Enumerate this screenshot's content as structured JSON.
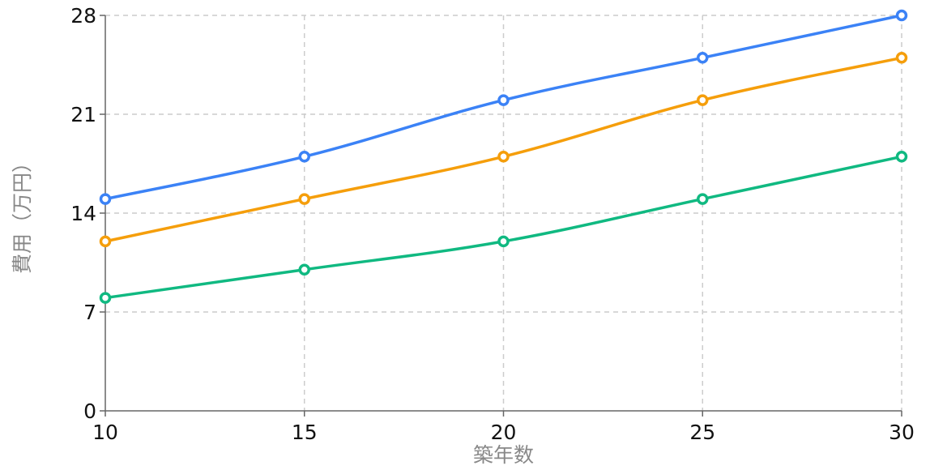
{
  "chart_data": {
    "type": "line",
    "title": "",
    "xlabel": "築年数",
    "ylabel": "費用（万円）",
    "x": [
      10,
      15,
      20,
      25,
      30
    ],
    "xlim": [
      10,
      30
    ],
    "ylim": [
      0,
      28
    ],
    "y_ticks": [
      0,
      7,
      14,
      21,
      28
    ],
    "x_ticks": [
      10,
      15,
      20,
      25,
      30
    ],
    "grid": true,
    "legend": "none",
    "series": [
      {
        "color": "#3b82f6",
        "values": [
          15,
          18,
          22,
          25,
          28
        ]
      },
      {
        "color": "#f59e0b",
        "values": [
          12,
          15,
          18,
          22,
          25
        ]
      },
      {
        "color": "#10b981",
        "values": [
          8,
          10,
          12,
          15,
          18
        ]
      }
    ]
  }
}
